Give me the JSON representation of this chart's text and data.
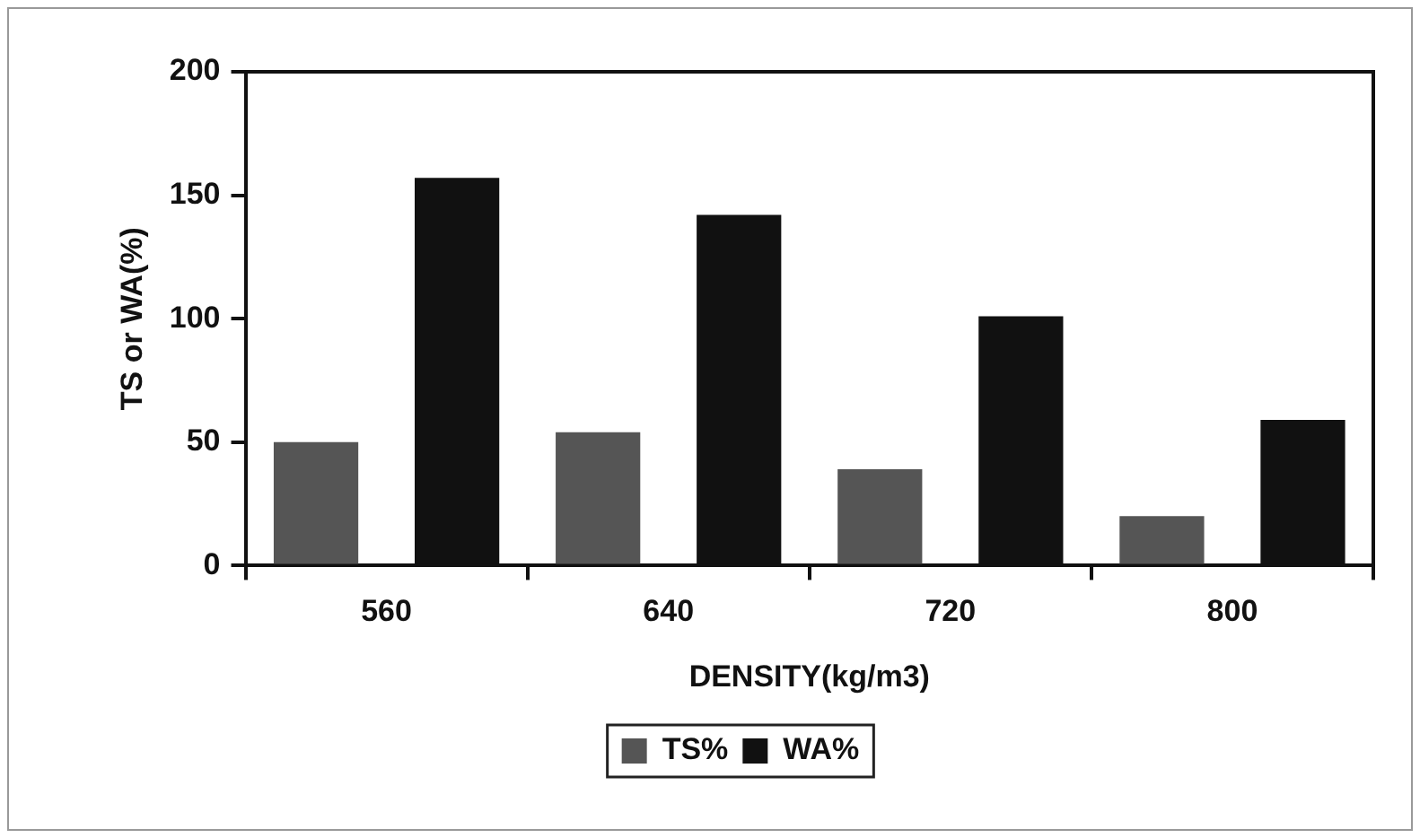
{
  "chart_data": {
    "type": "bar",
    "xlabel": "DENSITY(kg/m3)",
    "ylabel": "TS or WA(%)",
    "categories": [
      "560",
      "640",
      "720",
      "800"
    ],
    "series": [
      {
        "name": "TS%",
        "color": "#555555",
        "values": [
          50,
          54,
          39,
          20
        ]
      },
      {
        "name": "WA%",
        "color": "#111111",
        "values": [
          157,
          142,
          101,
          59
        ]
      }
    ],
    "ylim": [
      0,
      200
    ],
    "yticks": [
      0,
      50,
      100,
      150,
      200
    ],
    "grid": false,
    "legend": "bottom"
  }
}
